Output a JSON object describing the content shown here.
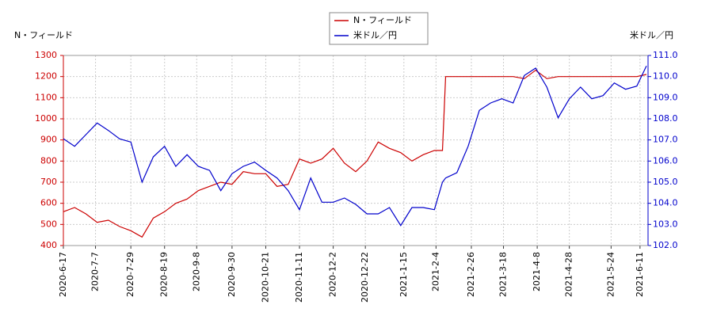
{
  "chart_data": {
    "type": "line",
    "y_label": "N・フィールド",
    "y2_label": "米ドル／円",
    "x": [
      "2020-6-17",
      "2020-6-24",
      "2020-7-1",
      "2020-7-8",
      "2020-7-15",
      "2020-7-22",
      "2020-7-29",
      "2020-8-5",
      "2020-8-12",
      "2020-8-19",
      "2020-8-26",
      "2020-9-2",
      "2020-9-9",
      "2020-9-16",
      "2020-9-23",
      "2020-9-30",
      "2020-10-7",
      "2020-10-14",
      "2020-10-21",
      "2020-10-28",
      "2020-11-4",
      "2020-11-11",
      "2020-11-18",
      "2020-11-25",
      "2020-12-2",
      "2020-12-9",
      "2020-12-16",
      "2020-12-23",
      "2020-12-30",
      "2021-1-6",
      "2021-1-13",
      "2021-1-20",
      "2021-1-27",
      "2021-2-3",
      "2021-2-8",
      "2021-2-10",
      "2021-2-17",
      "2021-2-24",
      "2021-3-3",
      "2021-3-10",
      "2021-3-17",
      "2021-3-24",
      "2021-3-31",
      "2021-4-7",
      "2021-4-14",
      "2021-4-21",
      "2021-4-28",
      "2021-5-5",
      "2021-5-12",
      "2021-5-19",
      "2021-5-26",
      "2021-6-2",
      "2021-6-9",
      "2021-6-15"
    ],
    "series": [
      {
        "name": "N・フィールド",
        "color": "#cc0000",
        "axis": "y",
        "values": [
          560,
          580,
          550,
          510,
          520,
          490,
          470,
          440,
          530,
          560,
          600,
          620,
          660,
          680,
          700,
          690,
          750,
          740,
          740,
          680,
          690,
          810,
          790,
          810,
          860,
          790,
          750,
          800,
          890,
          860,
          840,
          800,
          830,
          850,
          850,
          1200,
          1200,
          1200,
          1200,
          1200,
          1200,
          1200,
          1190,
          1230,
          1190,
          1200,
          1200,
          1200,
          1200,
          1200,
          1200,
          1200,
          1200,
          1210
        ]
      },
      {
        "name": "米ドル／円",
        "color": "#0000cc",
        "axis": "y2",
        "values": [
          107.06,
          106.7,
          107.25,
          107.8,
          107.45,
          107.05,
          106.9,
          105.0,
          106.2,
          106.7,
          105.75,
          106.3,
          105.75,
          105.56,
          104.6,
          105.4,
          105.75,
          105.95,
          105.56,
          105.2,
          104.6,
          103.7,
          105.2,
          104.05,
          104.05,
          104.25,
          103.95,
          103.5,
          103.5,
          103.8,
          102.95,
          103.8,
          103.8,
          103.7,
          105.0,
          105.2,
          105.45,
          106.7,
          108.4,
          108.75,
          108.95,
          108.75,
          110.05,
          110.4,
          109.5,
          108.05,
          108.95,
          109.5,
          108.95,
          109.1,
          109.7,
          109.4,
          109.55,
          110.5
        ]
      }
    ],
    "xlim": [
      "2020-6-17",
      "2021-6-16"
    ],
    "xticks": [
      "2020-6-17",
      "2020-7-7",
      "2020-7-29",
      "2020-8-19",
      "2020-9-8",
      "2020-9-30",
      "2020-10-21",
      "2020-11-11",
      "2020-12-2",
      "2020-12-22",
      "2021-1-15",
      "2021-2-4",
      "2021-2-26",
      "2021-3-18",
      "2021-4-8",
      "2021-4-28",
      "2021-5-24",
      "2021-6-11"
    ],
    "ylim": [
      400,
      1300
    ],
    "yticks": [
      400,
      500,
      600,
      700,
      800,
      900,
      1000,
      1100,
      1200,
      1300
    ],
    "y2lim": [
      102,
      111
    ],
    "y2ticks": [
      {
        "value": 102,
        "label": "102.0"
      },
      {
        "value": 103,
        "label": "103.0"
      },
      {
        "value": 104,
        "label": "104.0"
      },
      {
        "value": 105,
        "label": "105.0"
      },
      {
        "value": 106,
        "label": "106.0"
      },
      {
        "value": 107,
        "label": "107.0"
      },
      {
        "value": 108,
        "label": "108.0"
      },
      {
        "value": 109,
        "label": "109.0"
      },
      {
        "value": 110,
        "label": "110.0"
      },
      {
        "value": 111,
        "label": "111.0"
      }
    ],
    "grid": true,
    "legend": "top"
  }
}
